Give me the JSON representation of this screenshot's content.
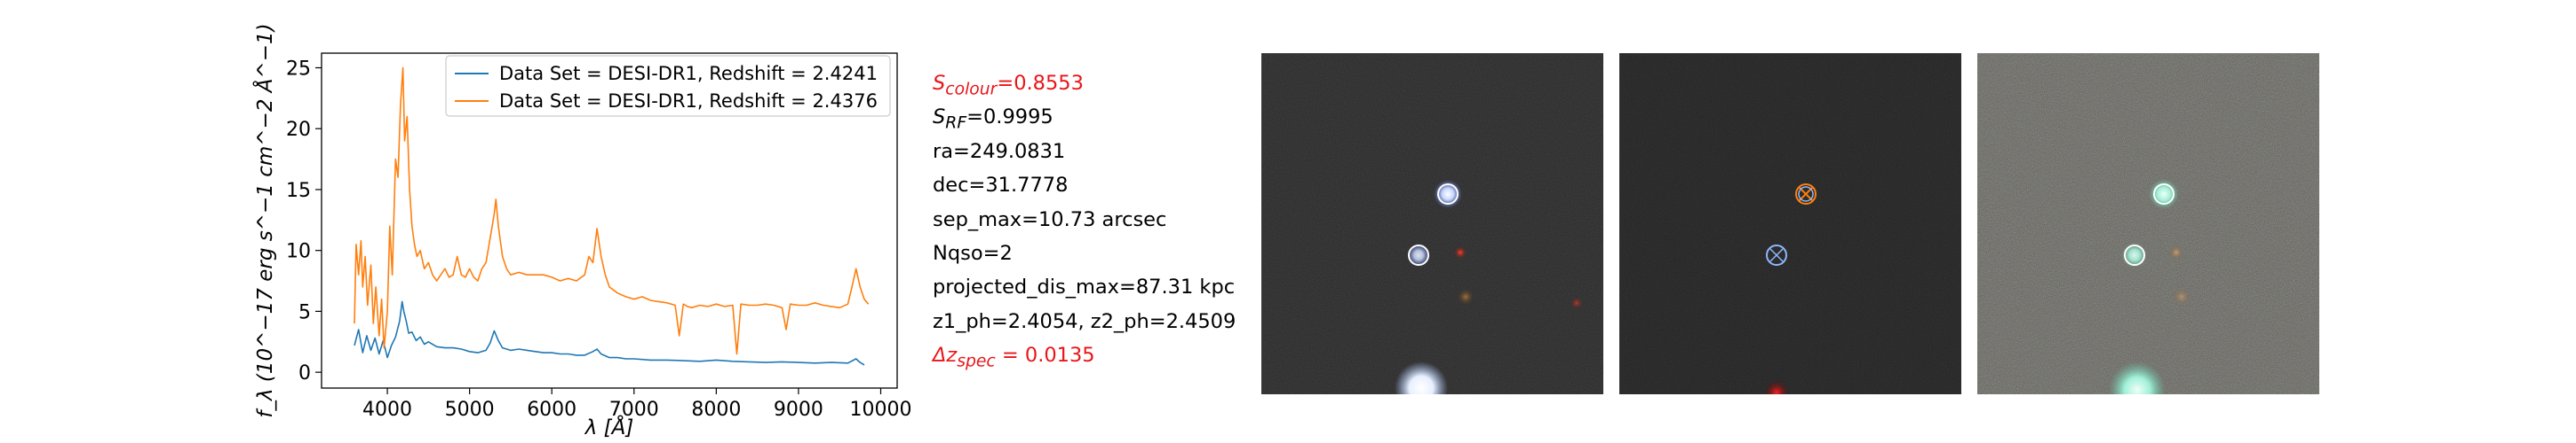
{
  "chart_data": {
    "type": "line",
    "xlabel": "λ [Å]",
    "ylabel": "f_λ (10^−17 erg s^−1 cm^−2 Å^−1)",
    "xlim": [
      3200,
      10200
    ],
    "ylim": [
      -1.3,
      26.2
    ],
    "xticks": [
      4000,
      5000,
      6000,
      7000,
      8000,
      9000,
      10000
    ],
    "yticks": [
      0,
      5,
      10,
      15,
      20,
      25
    ],
    "grid": false,
    "legend_position": "top-right",
    "series": [
      {
        "name": "Data Set = DESI-DR1, Redshift = 2.4241",
        "color": "#1f77b4",
        "x": [
          3600,
          3650,
          3700,
          3750,
          3800,
          3850,
          3900,
          3950,
          4000,
          4050,
          4100,
          4150,
          4180,
          4200,
          4230,
          4260,
          4300,
          4350,
          4400,
          4450,
          4500,
          4600,
          4700,
          4800,
          4900,
          5000,
          5100,
          5200,
          5250,
          5300,
          5350,
          5400,
          5500,
          5600,
          5700,
          5800,
          5900,
          6000,
          6100,
          6200,
          6300,
          6400,
          6500,
          6550,
          6600,
          6700,
          6800,
          6900,
          7000,
          7200,
          7400,
          7600,
          7800,
          8000,
          8200,
          8400,
          8600,
          8800,
          9000,
          9200,
          9400,
          9600,
          9700,
          9750,
          9800
        ],
        "y": [
          2.2,
          3.5,
          1.6,
          3.0,
          1.8,
          2.8,
          1.5,
          2.6,
          1.2,
          2.2,
          2.9,
          4.2,
          5.8,
          5.0,
          4.2,
          3.2,
          3.3,
          2.6,
          2.9,
          2.3,
          2.5,
          2.1,
          2.0,
          2.0,
          1.9,
          1.7,
          1.6,
          1.8,
          2.4,
          3.4,
          2.6,
          2.0,
          1.8,
          1.9,
          1.8,
          1.7,
          1.6,
          1.6,
          1.5,
          1.5,
          1.4,
          1.4,
          1.7,
          1.9,
          1.5,
          1.2,
          1.2,
          1.1,
          1.1,
          1.0,
          1.0,
          0.95,
          0.9,
          1.0,
          0.9,
          0.85,
          0.8,
          0.85,
          0.8,
          0.75,
          0.8,
          0.75,
          1.1,
          0.8,
          0.6
        ]
      },
      {
        "name": "Data Set = DESI-DR1, Redshift = 2.4376",
        "color": "#ff7f0e",
        "x": [
          3600,
          3620,
          3650,
          3680,
          3700,
          3730,
          3760,
          3800,
          3830,
          3860,
          3900,
          3930,
          3960,
          4000,
          4030,
          4060,
          4100,
          4130,
          4160,
          4190,
          4210,
          4240,
          4270,
          4300,
          4330,
          4360,
          4400,
          4450,
          4500,
          4550,
          4600,
          4650,
          4700,
          4750,
          4800,
          4850,
          4900,
          4950,
          5000,
          5050,
          5100,
          5150,
          5200,
          5250,
          5300,
          5320,
          5350,
          5400,
          5450,
          5500,
          5600,
          5700,
          5800,
          5900,
          6000,
          6100,
          6200,
          6300,
          6400,
          6450,
          6500,
          6550,
          6600,
          6650,
          6700,
          6800,
          6900,
          7000,
          7100,
          7200,
          7300,
          7400,
          7500,
          7550,
          7600,
          7650,
          7700,
          7800,
          7900,
          8000,
          8100,
          8200,
          8250,
          8300,
          8400,
          8500,
          8600,
          8700,
          8800,
          8850,
          8900,
          9000,
          9100,
          9200,
          9300,
          9400,
          9500,
          9600,
          9650,
          9700,
          9750,
          9800,
          9850
        ],
        "y": [
          4.0,
          10.5,
          8.0,
          10.8,
          7.0,
          9.5,
          5.5,
          8.8,
          4.0,
          7.0,
          3.0,
          6.0,
          2.0,
          5.0,
          12.0,
          8.0,
          17.5,
          16.0,
          22.0,
          25.0,
          19.0,
          21.0,
          15.0,
          12.0,
          10.5,
          9.5,
          10.0,
          8.5,
          9.0,
          8.0,
          7.5,
          8.0,
          8.5,
          7.8,
          8.0,
          9.5,
          8.0,
          7.8,
          8.5,
          7.8,
          7.5,
          8.5,
          9.0,
          11.0,
          13.0,
          14.2,
          12.0,
          9.5,
          8.5,
          8.0,
          8.2,
          8.0,
          8.0,
          8.0,
          7.8,
          7.5,
          7.7,
          7.5,
          8.0,
          9.5,
          9.0,
          11.8,
          9.5,
          8.0,
          7.0,
          6.5,
          6.2,
          6.0,
          6.2,
          5.9,
          5.8,
          5.7,
          5.5,
          3.0,
          5.6,
          5.4,
          5.3,
          5.5,
          5.4,
          5.6,
          5.4,
          5.5,
          1.5,
          5.6,
          5.5,
          5.5,
          5.6,
          5.5,
          5.3,
          3.5,
          5.6,
          5.5,
          5.5,
          5.7,
          5.5,
          5.4,
          5.3,
          5.6,
          7.0,
          8.5,
          7.0,
          6.0,
          5.6
        ]
      }
    ]
  },
  "info": {
    "s_colour": {
      "prefix": "S",
      "sub": "colour",
      "value": "=0.8553"
    },
    "s_rf": {
      "prefix": "S",
      "sub": "RF",
      "value": "=0.9995"
    },
    "ra": "ra=249.0831",
    "dec": "dec=31.7778",
    "sep_max": "sep_max=10.73 arcsec",
    "nqso": "Nqso=2",
    "projected_dis_max": "projected_dis_max=87.31 kpc",
    "z_ph": "z1_ph=2.4054, z2_ph=2.4509",
    "dz_spec": {
      "prefix": "Δz",
      "sub": "spec",
      "value": " = 0.0135"
    }
  },
  "colors": {
    "highlight_text": "#e8161a",
    "panel_bg_1": "#262626",
    "panel_bg_2": "#1f1f1f",
    "panel_bg_3": "#5a5a52",
    "marker_circle": "#ffffff",
    "marker_cross": "#ff7f0e"
  }
}
